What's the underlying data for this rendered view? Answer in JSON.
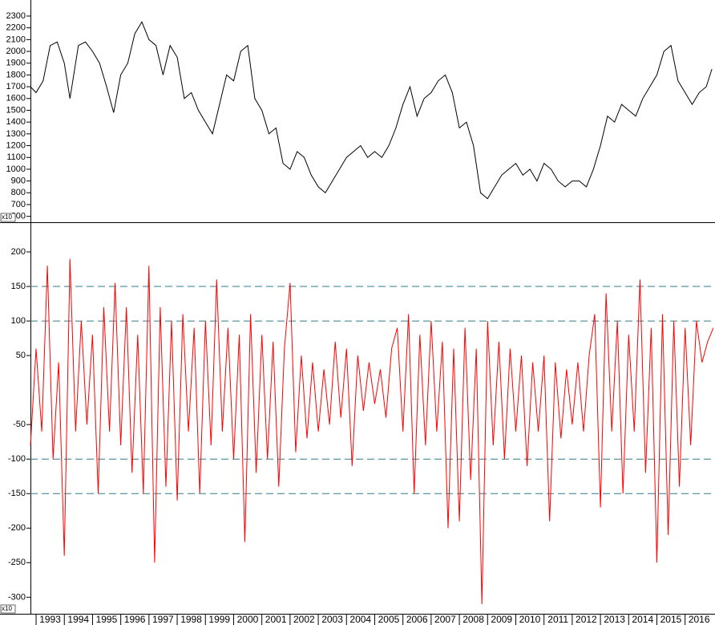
{
  "chart_data": [
    {
      "type": "line",
      "color": "#000000",
      "y_multiplier_label": "x10",
      "xlim": [
        1992.8,
        2017.06
      ],
      "ylim": [
        550,
        2436
      ],
      "yticks": [
        600,
        700,
        800,
        900,
        1000,
        1100,
        1200,
        1300,
        1400,
        1500,
        1600,
        1700,
        1800,
        1900,
        2000,
        2100,
        2200,
        2300
      ],
      "x": [
        1992.8,
        1993.0,
        1993.25,
        1993.5,
        1993.75,
        1994.0,
        1994.2,
        1994.5,
        1994.75,
        1995.0,
        1995.25,
        1995.5,
        1995.75,
        1996.0,
        1996.25,
        1996.5,
        1996.75,
        1997.0,
        1997.25,
        1997.5,
        1997.75,
        1998.0,
        1998.25,
        1998.5,
        1998.75,
        1999.0,
        1999.25,
        1999.5,
        1999.75,
        2000.0,
        2000.25,
        2000.5,
        2000.75,
        2001.0,
        2001.25,
        2001.5,
        2001.75,
        2002.0,
        2002.25,
        2002.5,
        2002.75,
        2003.0,
        2003.25,
        2003.5,
        2003.75,
        2004.0,
        2004.25,
        2004.5,
        2004.75,
        2005.0,
        2005.25,
        2005.5,
        2005.75,
        2006.0,
        2006.25,
        2006.5,
        2006.75,
        2007.0,
        2007.25,
        2007.5,
        2007.75,
        2008.0,
        2008.25,
        2008.5,
        2008.75,
        2009.0,
        2009.25,
        2009.5,
        2009.75,
        2010.0,
        2010.25,
        2010.5,
        2010.75,
        2011.0,
        2011.25,
        2011.5,
        2011.75,
        2012.0,
        2012.25,
        2012.5,
        2012.75,
        2013.0,
        2013.25,
        2013.5,
        2013.75,
        2014.0,
        2014.25,
        2014.5,
        2014.75,
        2015.0,
        2015.25,
        2015.5,
        2015.75,
        2016.0,
        2016.25,
        2016.5,
        2016.75,
        2016.95
      ],
      "values": [
        1700,
        1650,
        1750,
        2050,
        2080,
        1900,
        1600,
        2050,
        2080,
        2000,
        1900,
        1700,
        1480,
        1800,
        1900,
        2150,
        2250,
        2100,
        2050,
        1800,
        2050,
        1950,
        1600,
        1650,
        1500,
        1400,
        1300,
        1550,
        1800,
        1750,
        2000,
        2050,
        1600,
        1500,
        1300,
        1350,
        1050,
        1000,
        1150,
        1100,
        950,
        850,
        800,
        900,
        1000,
        1100,
        1150,
        1200,
        1100,
        1150,
        1100,
        1200,
        1350,
        1550,
        1700,
        1450,
        1600,
        1650,
        1750,
        1800,
        1650,
        1350,
        1400,
        1200,
        800,
        750,
        850,
        950,
        1000,
        1050,
        950,
        1000,
        900,
        1050,
        1000,
        900,
        850,
        900,
        900,
        850,
        1000,
        1200,
        1450,
        1400,
        1550,
        1500,
        1450,
        1600,
        1700,
        1800,
        2000,
        2050,
        1750,
        1650,
        1550,
        1650,
        1700,
        1850
      ]
    },
    {
      "type": "line",
      "color": "#ff0000",
      "y_multiplier_label": "x10",
      "xlim": [
        1992.8,
        2017.06
      ],
      "ylim": [
        -324,
        243
      ],
      "yticks": [
        200,
        150,
        100,
        50,
        -50,
        -100,
        -150,
        -200,
        -250,
        -300
      ],
      "reference_lines": [
        150,
        100,
        -100,
        -150
      ],
      "reference_color": "#2e7d8c",
      "xticks": [
        1993,
        1994,
        1995,
        1996,
        1997,
        1998,
        1999,
        2000,
        2001,
        2002,
        2003,
        2004,
        2005,
        2006,
        2007,
        2008,
        2009,
        2010,
        2011,
        2012,
        2013,
        2014,
        2015,
        2016
      ],
      "x": [
        1992.8,
        1993.0,
        1993.2,
        1993.4,
        1993.6,
        1993.8,
        1994.0,
        1994.2,
        1994.4,
        1994.6,
        1994.8,
        1995.0,
        1995.2,
        1995.4,
        1995.6,
        1995.8,
        1996.0,
        1996.2,
        1996.4,
        1996.6,
        1996.8,
        1997.0,
        1997.2,
        1997.4,
        1997.6,
        1997.8,
        1998.0,
        1998.2,
        1998.4,
        1998.6,
        1998.8,
        1999.0,
        1999.2,
        1999.4,
        1999.6,
        1999.8,
        2000.0,
        2000.2,
        2000.4,
        2000.6,
        2000.8,
        2001.0,
        2001.2,
        2001.4,
        2001.6,
        2001.8,
        2002.0,
        2002.2,
        2002.4,
        2002.6,
        2002.8,
        2003.0,
        2003.2,
        2003.4,
        2003.6,
        2003.8,
        2004.0,
        2004.2,
        2004.4,
        2004.6,
        2004.8,
        2005.0,
        2005.2,
        2005.4,
        2005.6,
        2005.8,
        2006.0,
        2006.2,
        2006.4,
        2006.6,
        2006.8,
        2007.0,
        2007.2,
        2007.4,
        2007.6,
        2007.8,
        2008.0,
        2008.2,
        2008.4,
        2008.6,
        2008.8,
        2009.0,
        2009.2,
        2009.4,
        2009.6,
        2009.8,
        2010.0,
        2010.2,
        2010.4,
        2010.6,
        2010.8,
        2011.0,
        2011.2,
        2011.4,
        2011.6,
        2011.8,
        2012.0,
        2012.2,
        2012.4,
        2012.6,
        2012.8,
        2013.0,
        2013.2,
        2013.4,
        2013.6,
        2013.8,
        2014.0,
        2014.2,
        2014.4,
        2014.6,
        2014.8,
        2015.0,
        2015.2,
        2015.4,
        2015.6,
        2015.8,
        2016.0,
        2016.2,
        2016.4,
        2016.6,
        2016.8,
        2017.0
      ],
      "values": [
        -80,
        60,
        -60,
        180,
        -100,
        40,
        -240,
        190,
        -60,
        100,
        -50,
        80,
        -150,
        120,
        -60,
        155,
        -80,
        120,
        -120,
        80,
        -150,
        180,
        -250,
        120,
        -140,
        100,
        -160,
        110,
        -60,
        90,
        -150,
        100,
        -80,
        160,
        -60,
        90,
        -100,
        80,
        -220,
        110,
        -120,
        80,
        -100,
        70,
        -140,
        60,
        155,
        -90,
        50,
        -70,
        40,
        -60,
        30,
        -50,
        70,
        -40,
        60,
        -110,
        50,
        -30,
        40,
        -20,
        30,
        -40,
        60,
        90,
        -60,
        110,
        -150,
        80,
        -80,
        100,
        -60,
        70,
        -200,
        60,
        -190,
        90,
        -130,
        60,
        -310,
        100,
        -80,
        70,
        -100,
        60,
        -60,
        50,
        -110,
        40,
        -60,
        50,
        -190,
        40,
        -70,
        30,
        -50,
        40,
        -60,
        50,
        110,
        -170,
        140,
        -60,
        100,
        -150,
        80,
        -60,
        160,
        -120,
        90,
        -250,
        110,
        -210,
        100,
        -140,
        90,
        -80,
        100,
        40,
        70,
        90
      ]
    }
  ]
}
